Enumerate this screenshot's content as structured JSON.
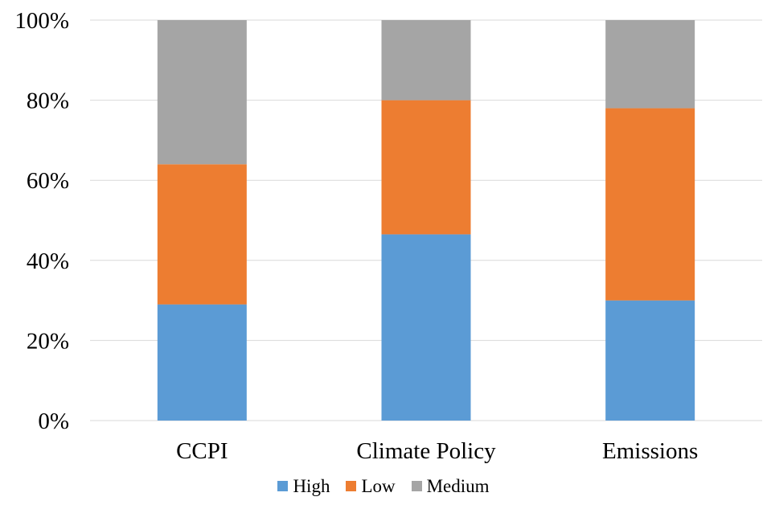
{
  "chart_data": {
    "type": "bar",
    "stacked": true,
    "percent": true,
    "title": "",
    "xlabel": "",
    "ylabel": "",
    "categories": [
      "CCPI",
      "Climate Policy",
      "Emissions"
    ],
    "series": [
      {
        "name": "High",
        "color": "#5B9BD5",
        "values": [
          29,
          46.5,
          30
        ]
      },
      {
        "name": "Low",
        "color": "#ED7D31",
        "values": [
          35,
          33.5,
          48
        ]
      },
      {
        "name": "Medium",
        "color": "#A5A5A5",
        "values": [
          36,
          20,
          22
        ]
      }
    ],
    "ylim": [
      0,
      100
    ],
    "yticks": [
      "0%",
      "20%",
      "40%",
      "60%",
      "80%",
      "100%"
    ],
    "grid": true,
    "gridColor": "#D9D9D9",
    "legend": "bottom"
  }
}
